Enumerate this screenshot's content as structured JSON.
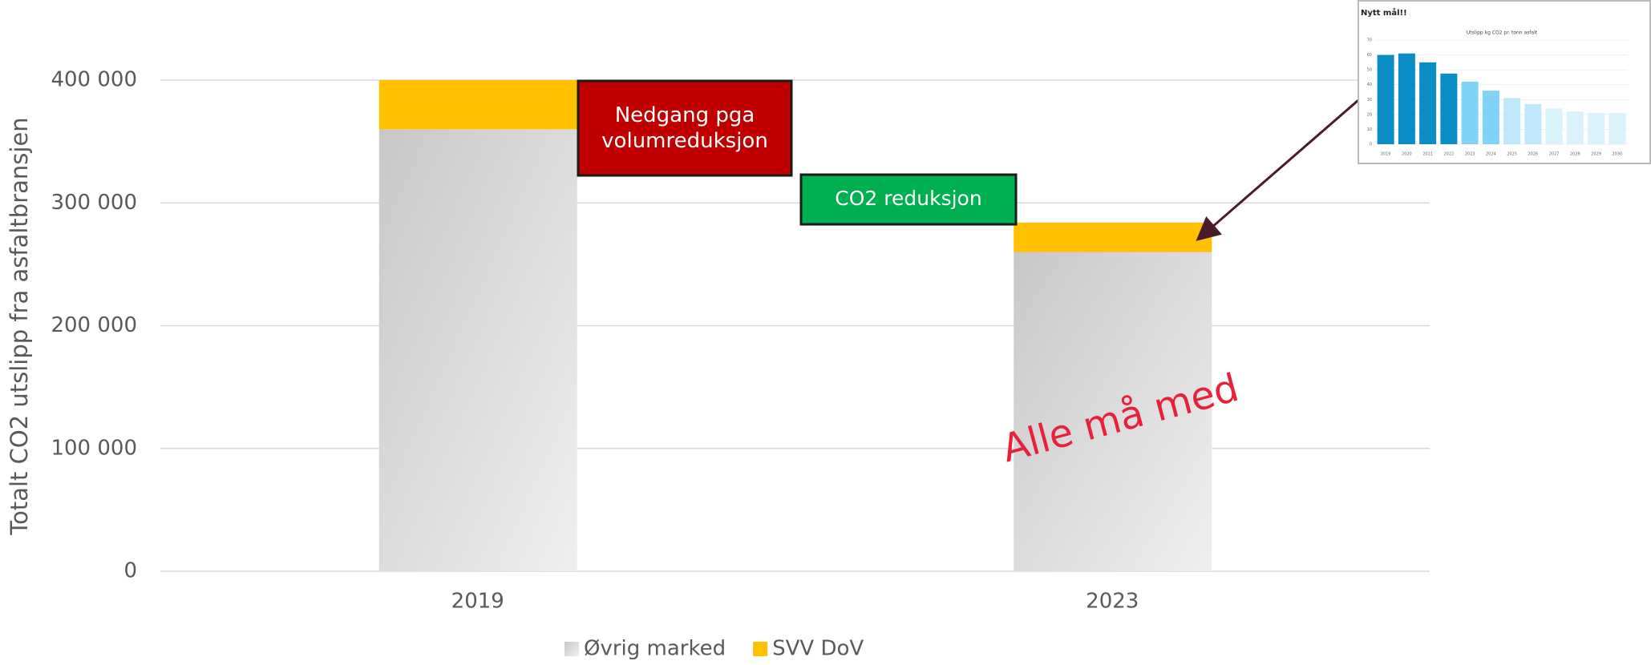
{
  "chart_data": [
    {
      "type": "stacked_bar",
      "ylabel": "Totalt CO2 utslipp fra asfaltbransjen",
      "categories": [
        "2019",
        "2023"
      ],
      "series": [
        {
          "name": "Øvrig marked",
          "color": "#cccccc",
          "values": [
            360000,
            260000
          ]
        },
        {
          "name": "SVV DoV",
          "color": "#ffc000",
          "values": [
            40000,
            24000
          ]
        }
      ],
      "ylim": [
        0,
        400000
      ],
      "yticks": [
        {
          "value": 0,
          "label": "0"
        },
        {
          "value": 100000,
          "label": "100 000"
        },
        {
          "value": 200000,
          "label": "200 000"
        },
        {
          "value": 300000,
          "label": "300 000"
        },
        {
          "value": 400000,
          "label": "400 000"
        }
      ],
      "grid": true,
      "annotations": [
        "Nedgang pga volumreduksjon",
        "CO2 reduksjon",
        "Alle må med"
      ]
    },
    {
      "type": "bar",
      "title": "Nytt mål!!",
      "subtitle": "Utslipp kg CO2 pr. tonn asfalt",
      "categories": [
        "2019",
        "2020",
        "2021",
        "2022",
        "2023",
        "2024",
        "2025",
        "2026",
        "2027",
        "2028",
        "2029",
        "2030"
      ],
      "values": [
        60,
        61,
        55,
        47.5,
        42,
        36,
        31,
        27,
        24,
        22,
        21,
        21
      ],
      "colors": [
        "#0a8cc4",
        "#0a8cc4",
        "#0a8cc4",
        "#0a8cc4",
        "#7fd4f5",
        "#7fd4f5",
        "#bfe9fa",
        "#bfe9fa",
        "#d9f2fc",
        "#d9f2fc",
        "#d9f2fc",
        "#d9f2fc"
      ],
      "ylim": [
        0,
        70
      ],
      "yticks": [
        0,
        10,
        20,
        30,
        40,
        50,
        60,
        70
      ],
      "grid": true
    }
  ]
}
